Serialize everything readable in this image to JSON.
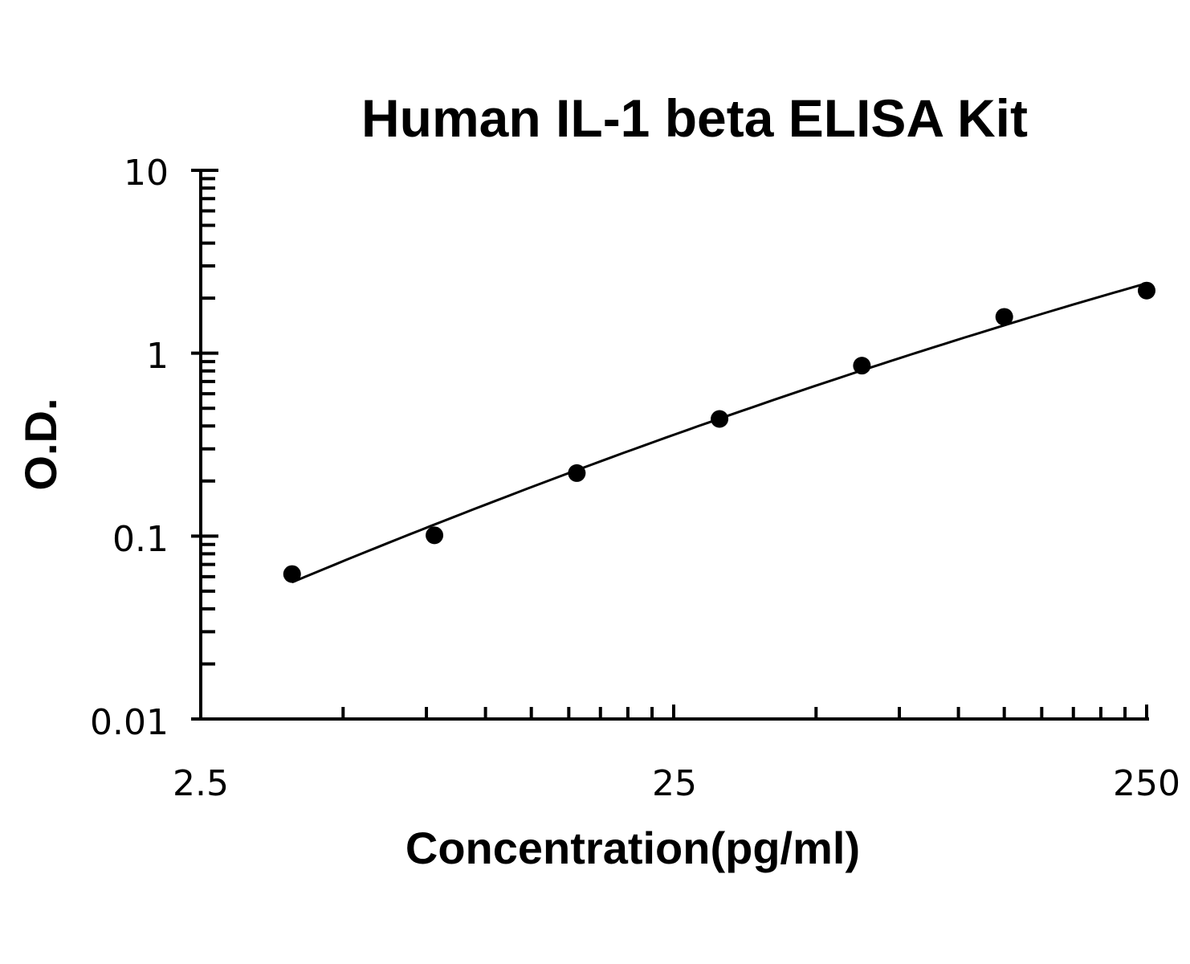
{
  "chart_data": {
    "type": "scatter",
    "title": "Human IL-1 beta ELISA Kit",
    "xlabel": "Concentration(pg/ml)",
    "ylabel": "O.D.",
    "x_scale": "log",
    "y_scale": "log",
    "xlim": [
      2.5,
      250
    ],
    "ylim": [
      0.01,
      10
    ],
    "x_tick_labels": [
      "2.5",
      "25",
      "250"
    ],
    "y_tick_labels": [
      "10",
      "1",
      "0.1",
      "0.01"
    ],
    "grid": false,
    "legend": "none",
    "marker_color": "#000000",
    "line_color": "#000000",
    "series": [
      {
        "points": [
          {
            "x": 3.9,
            "y": 0.062
          },
          {
            "x": 7.8,
            "y": 0.101
          },
          {
            "x": 15.6,
            "y": 0.221
          },
          {
            "x": 31.25,
            "y": 0.437
          },
          {
            "x": 62.5,
            "y": 0.855
          },
          {
            "x": 125,
            "y": 1.58
          },
          {
            "x": 250,
            "y": 2.2
          }
        ]
      }
    ]
  }
}
